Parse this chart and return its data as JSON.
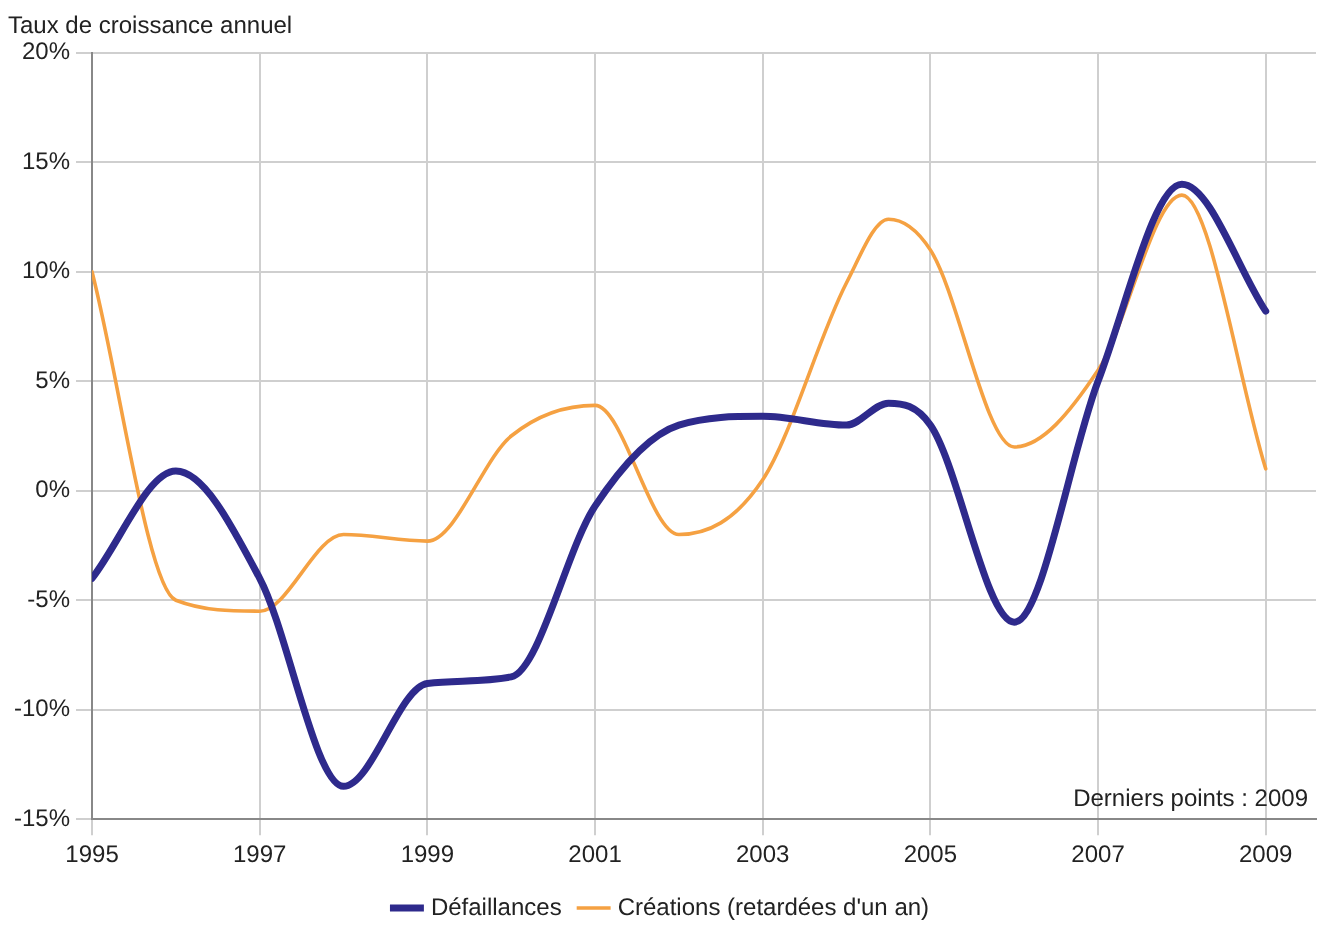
{
  "chart_data": {
    "type": "line",
    "title": "Taux de croissance annuel",
    "xlim": [
      1995,
      2009.6
    ],
    "xticks": [
      1995,
      1997,
      1999,
      2001,
      2003,
      2005,
      2007,
      2009
    ],
    "ylim": [
      -15,
      20
    ],
    "yticks": [
      {
        "value": -15,
        "label": "-15%"
      },
      {
        "value": -10,
        "label": "-10%"
      },
      {
        "value": -5,
        "label": "-5%"
      },
      {
        "value": 0,
        "label": "0%"
      },
      {
        "value": 5,
        "label": "5%"
      },
      {
        "value": 10,
        "label": "10%"
      },
      {
        "value": 15,
        "label": "15%"
      },
      {
        "value": 20,
        "label": "20%"
      }
    ],
    "grid": true,
    "legend": "bottom",
    "marker": "none",
    "line_style": "solid",
    "annotations": [
      "Derniers points : 2009"
    ],
    "series": [
      {
        "name": "Défaillances",
        "color": "#2e2a8c",
        "x": [
          1995,
          1996,
          1997,
          1998,
          1999,
          2000,
          2001,
          2002,
          2003,
          2004,
          2004.5,
          2005,
          2006,
          2007,
          2008,
          2009
        ],
        "values": [
          -4,
          0.9,
          -4,
          -13.5,
          -8.8,
          -8.5,
          -0.7,
          3,
          3.4,
          3,
          4,
          3,
          -6,
          5,
          14,
          8.2
        ]
      },
      {
        "name": "Créations (retardées d'un an)",
        "color": "#f5a142",
        "x": [
          1995,
          1996,
          1997,
          1998,
          1999,
          2000,
          2001,
          2002,
          2003,
          2004,
          2004.5,
          2005,
          2006,
          2007,
          2008,
          2009
        ],
        "values": [
          10,
          -5,
          -5.5,
          -2,
          -2.3,
          2.5,
          3.9,
          -2,
          0.5,
          9.5,
          12.4,
          11,
          2,
          5.5,
          13.5,
          1
        ]
      }
    ]
  }
}
